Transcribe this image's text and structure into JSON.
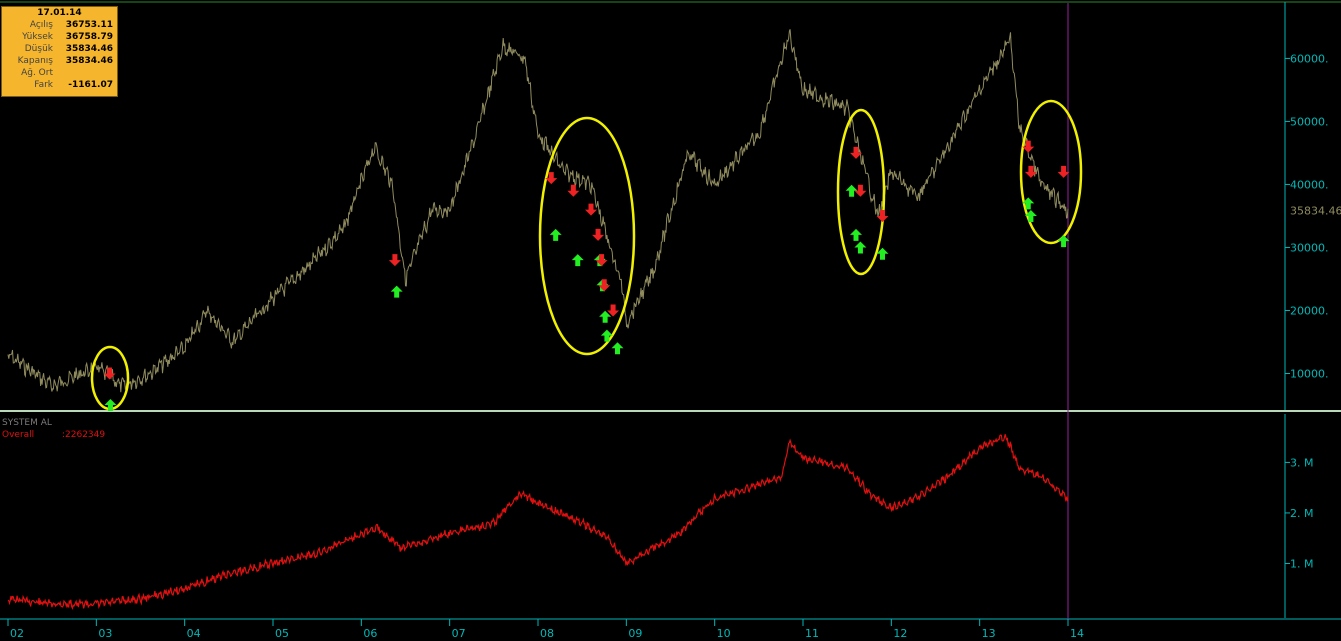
{
  "info_box": {
    "date": "17.01.14",
    "rows": [
      {
        "label": "Açılış",
        "value": "36753.11"
      },
      {
        "label": "Yüksek",
        "value": "36758.79"
      },
      {
        "label": "Düşük",
        "value": "35834.46"
      },
      {
        "label": "Kapanış",
        "value": "35834.46"
      },
      {
        "label": "Ağ. Ort",
        "value": ""
      },
      {
        "label": "Fark",
        "value": "-1161.07"
      }
    ]
  },
  "system": {
    "name": "SYSTEM AL",
    "overall_label": "Overall",
    "overall_value": ":2262349"
  },
  "colors": {
    "price": "#8f8b5e",
    "equity": "#e01010",
    "axis": "#00b8b8",
    "ellipse": "#f0f000",
    "buy": "#22ee22",
    "sell": "#ee2222",
    "cursor": "#9a1fa0",
    "info_bg": "#f5b52c"
  },
  "chart_data": [
    {
      "type": "line",
      "x": [
        2002.0,
        2002.5,
        2003.0,
        2003.3,
        2003.6,
        2004.0,
        2004.25,
        2004.55,
        2005.0,
        2005.4,
        2005.8,
        2006.15,
        2006.35,
        2006.5,
        2006.8,
        2007.0,
        2007.3,
        2007.6,
        2007.85,
        2008.0,
        2008.3,
        2008.6,
        2008.95,
        2009.0,
        2009.3,
        2009.7,
        2010.0,
        2010.5,
        2010.85,
        2011.0,
        2011.5,
        2011.85,
        2012.0,
        2012.3,
        2012.6,
        2013.0,
        2013.35,
        2013.45,
        2013.7,
        2014.0
      ],
      "y": [
        13000,
        8000,
        11000,
        8000,
        10000,
        14000,
        20000,
        15000,
        22000,
        27000,
        33000,
        46000,
        40000,
        25000,
        36000,
        36000,
        48000,
        62000,
        60000,
        48000,
        42000,
        40000,
        24000,
        18000,
        26000,
        45000,
        40000,
        48000,
        64000,
        55000,
        52000,
        35000,
        42000,
        38000,
        45000,
        55000,
        63000,
        49000,
        40000,
        35834
      ],
      "ylim": [
        5000,
        68000
      ],
      "ticks": [
        "60000.",
        "50000.",
        "40000.",
        "30000.",
        "20000.",
        "10000."
      ],
      "last_value": "35834.46",
      "signals": {
        "buy": [
          [
            2003.16,
            5000
          ],
          [
            2006.4,
            23000
          ],
          [
            2008.2,
            32000
          ],
          [
            2008.45,
            28000
          ],
          [
            2008.7,
            28000
          ],
          [
            2008.73,
            24000
          ],
          [
            2008.76,
            19000
          ],
          [
            2008.78,
            16000
          ],
          [
            2008.9,
            14000
          ],
          [
            2011.55,
            39000
          ],
          [
            2011.6,
            32000
          ],
          [
            2011.65,
            30000
          ],
          [
            2011.9,
            29000
          ],
          [
            2013.55,
            37000
          ],
          [
            2013.58,
            35000
          ],
          [
            2013.95,
            31000
          ]
        ],
        "sell": [
          [
            2003.15,
            10000
          ],
          [
            2006.38,
            28000
          ],
          [
            2008.15,
            41000
          ],
          [
            2008.4,
            39000
          ],
          [
            2008.6,
            36000
          ],
          [
            2008.68,
            32000
          ],
          [
            2008.72,
            28000
          ],
          [
            2008.75,
            24000
          ],
          [
            2008.85,
            20000
          ],
          [
            2011.6,
            45000
          ],
          [
            2011.65,
            39000
          ],
          [
            2011.9,
            35000
          ],
          [
            2013.55,
            46000
          ],
          [
            2013.58,
            42000
          ],
          [
            2013.95,
            42000
          ]
        ]
      }
    },
    {
      "type": "line",
      "x": [
        2002.0,
        2002.5,
        2003.0,
        2003.5,
        2004.0,
        2004.5,
        2005.0,
        2005.5,
        2006.0,
        2006.2,
        2006.45,
        2007.0,
        2007.5,
        2007.8,
        2008.0,
        2008.5,
        2008.8,
        2009.0,
        2009.3,
        2009.6,
        2010.0,
        2010.4,
        2010.75,
        2010.85,
        2011.0,
        2011.5,
        2011.8,
        2012.0,
        2012.3,
        2012.7,
        2013.0,
        2013.3,
        2013.45,
        2013.7,
        2014.0
      ],
      "y": [
        0.3,
        0.2,
        0.2,
        0.3,
        0.5,
        0.8,
        1.0,
        1.2,
        1.6,
        1.7,
        1.3,
        1.6,
        1.8,
        2.4,
        2.2,
        1.8,
        1.5,
        1.0,
        1.3,
        1.6,
        2.3,
        2.5,
        2.7,
        3.4,
        3.1,
        2.9,
        2.3,
        2.1,
        2.3,
        2.8,
        3.3,
        3.5,
        2.9,
        2.7,
        2.3
      ],
      "ylim": [
        0,
        3.8
      ],
      "ticks": [
        "3. M",
        "2. M",
        "1. M"
      ]
    }
  ],
  "x_axis": {
    "ticks": [
      "02",
      "03",
      "04",
      "05",
      "06",
      "07",
      "08",
      "09",
      "10",
      "11",
      "12",
      "13",
      "14"
    ]
  }
}
